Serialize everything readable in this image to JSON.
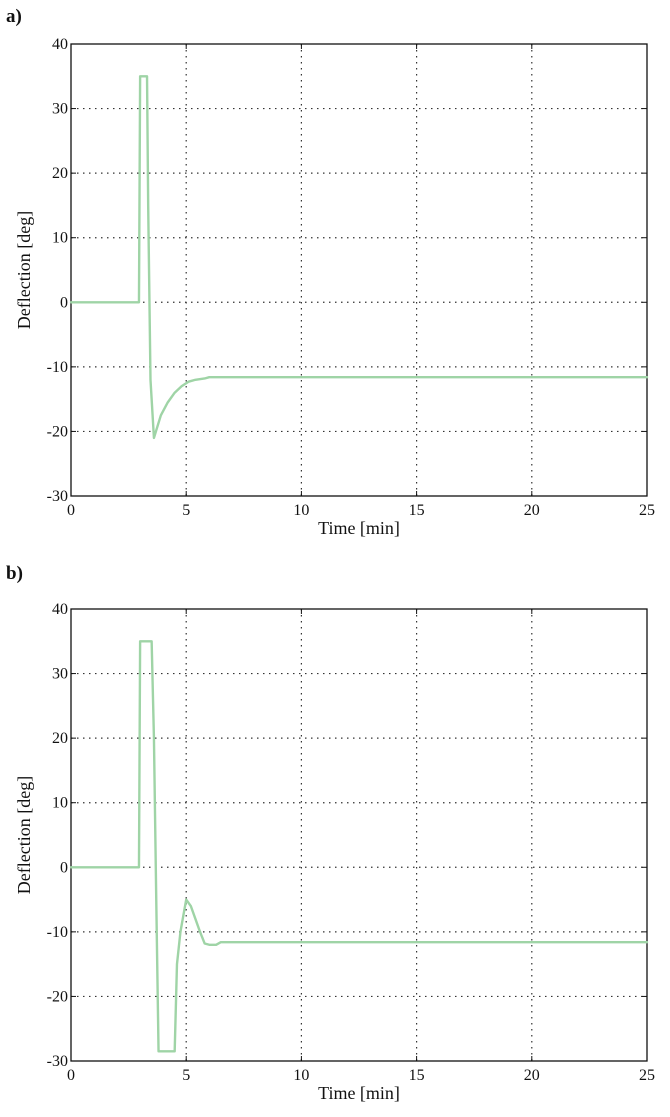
{
  "chart_data": [
    {
      "panel_label": "a)",
      "type": "line",
      "xlabel": "Time [min]",
      "ylabel": "Deflection [deg]",
      "xlim": [
        0,
        25
      ],
      "ylim": [
        -30,
        40
      ],
      "xticks": [
        0,
        5,
        10,
        15,
        20,
        25
      ],
      "yticks": [
        -30,
        -20,
        -10,
        0,
        10,
        20,
        30,
        40
      ],
      "grid": true,
      "series": [
        {
          "color": "#9fd4a6",
          "x": [
            0,
            2.95,
            3.0,
            3.3,
            3.35,
            3.45,
            3.6,
            3.9,
            4.2,
            4.5,
            4.8,
            5.1,
            5.4,
            5.8,
            6.0,
            8,
            10,
            15,
            20,
            25
          ],
          "y": [
            0,
            0,
            35,
            35,
            15,
            -12,
            -21,
            -17.5,
            -15.5,
            -14,
            -13,
            -12.3,
            -12,
            -11.8,
            -11.6,
            -11.6,
            -11.6,
            -11.6,
            -11.6,
            -11.6
          ]
        }
      ]
    },
    {
      "panel_label": "b)",
      "type": "line",
      "xlabel": "Time [min]",
      "ylabel": "Deflection [deg]",
      "xlim": [
        0,
        25
      ],
      "ylim": [
        -30,
        40
      ],
      "xticks": [
        0,
        5,
        10,
        15,
        20,
        25
      ],
      "yticks": [
        -30,
        -20,
        -10,
        0,
        10,
        20,
        30,
        40
      ],
      "grid": true,
      "series": [
        {
          "color": "#9fd4a6",
          "x": [
            0,
            2.95,
            3.0,
            3.5,
            3.6,
            3.7,
            3.8,
            4.5,
            4.6,
            4.75,
            5.0,
            5.2,
            5.4,
            5.6,
            5.8,
            6.0,
            6.3,
            6.5,
            8,
            10,
            15,
            20,
            25
          ],
          "y": [
            0,
            0,
            35,
            35,
            20,
            -5,
            -28.5,
            -28.5,
            -15,
            -10,
            -5,
            -6,
            -8,
            -10,
            -11.8,
            -12,
            -12,
            -11.6,
            -11.6,
            -11.6,
            -11.6,
            -11.6,
            -11.6
          ]
        }
      ]
    }
  ]
}
